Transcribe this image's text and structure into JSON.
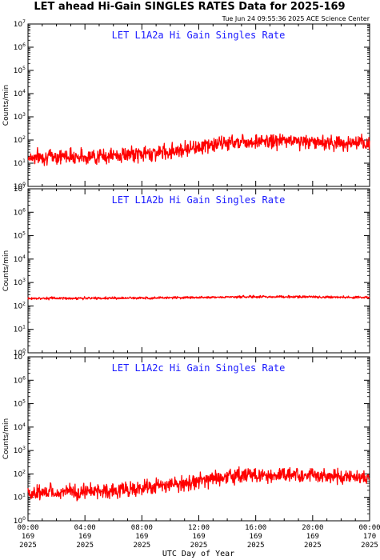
{
  "header": {
    "title": "LET ahead Hi-Gain SINGLES RATES Data for 2025-169",
    "timestamp": "Tue Jun 24 09:55:36 2025 ACE Science Center"
  },
  "colors": {
    "series": "#ff0000",
    "panel_label": "#1a1aff",
    "axis": "#000000"
  },
  "chart_data": [
    {
      "type": "line",
      "title": "LET L1A2a Hi Gain Singles Rate",
      "ylabel": "Counts/min",
      "yscale": "log",
      "ylim": [
        1,
        10000000
      ],
      "xlim": [
        0,
        24
      ],
      "series": [
        {
          "x": [
            0,
            1,
            2,
            3,
            4,
            5,
            6,
            7,
            8,
            9,
            10,
            11,
            12,
            13,
            14,
            15,
            16,
            17,
            18,
            19,
            20,
            21,
            22,
            23,
            24
          ],
          "values": [
            18,
            19,
            20,
            21,
            19,
            20,
            21,
            23,
            25,
            28,
            33,
            42,
            52,
            62,
            75,
            90,
            85,
            85,
            95,
            90,
            82,
            78,
            75,
            70,
            65
          ]
        }
      ]
    },
    {
      "type": "line",
      "title": "LET L1A2b Hi Gain Singles Rate",
      "ylabel": "Counts/min",
      "yscale": "log",
      "ylim": [
        1,
        10000000
      ],
      "xlim": [
        0,
        24
      ],
      "series": [
        {
          "x": [
            0,
            1,
            2,
            3,
            4,
            5,
            6,
            7,
            8,
            9,
            10,
            11,
            12,
            13,
            14,
            15,
            16,
            17,
            18,
            19,
            20,
            21,
            22,
            23,
            24
          ],
          "values": [
            210,
            212,
            214,
            212,
            212,
            214,
            215,
            215,
            220,
            222,
            225,
            228,
            232,
            236,
            240,
            244,
            244,
            246,
            248,
            246,
            244,
            240,
            236,
            232,
            228
          ]
        }
      ]
    },
    {
      "type": "line",
      "title": "LET L1A2c Hi Gain Singles Rate",
      "ylabel": "Counts/min",
      "yscale": "log",
      "ylim": [
        1,
        10000000
      ],
      "xlim": [
        0,
        24
      ],
      "xlabel": "UTC Day of Year",
      "xticks": [
        {
          "time": "00:00",
          "doy": "169",
          "year": "2025"
        },
        {
          "time": "04:00",
          "doy": "169",
          "year": "2025"
        },
        {
          "time": "08:00",
          "doy": "169",
          "year": "2025"
        },
        {
          "time": "12:00",
          "doy": "169",
          "year": "2025"
        },
        {
          "time": "16:00",
          "doy": "169",
          "year": "2025"
        },
        {
          "time": "20:00",
          "doy": "169",
          "year": "2025"
        },
        {
          "time": "00:00",
          "doy": "170",
          "year": "2025"
        }
      ],
      "series": [
        {
          "x": [
            0,
            1,
            2,
            3,
            4,
            5,
            6,
            7,
            8,
            9,
            10,
            11,
            12,
            13,
            14,
            15,
            16,
            17,
            18,
            19,
            20,
            21,
            22,
            23,
            24
          ],
          "values": [
            15,
            16,
            17,
            17,
            18,
            19,
            20,
            22,
            24,
            27,
            32,
            40,
            50,
            60,
            75,
            90,
            88,
            88,
            95,
            90,
            82,
            78,
            75,
            70,
            62
          ]
        }
      ]
    }
  ]
}
